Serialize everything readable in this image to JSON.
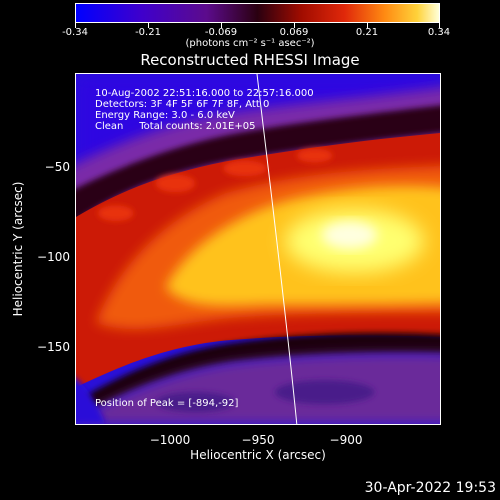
{
  "colorbar": {
    "tick_labels": [
      "-0.34",
      "-0.21",
      "-0.069",
      "0.069",
      "0.21",
      "0.34"
    ],
    "unit_label": "(photons cm⁻² s⁻¹ asec⁻²)",
    "range": [
      -0.34,
      0.34
    ]
  },
  "image": {
    "title": "Reconstructed RHESSI Image",
    "time_range": "10-Aug-2002 22:51:16.000 to 22:57:16.000",
    "detectors": "Detectors: 3F 4F 5F 6F 7F 8F, Att 0",
    "energy_range": "Energy Range: 3.0 - 6.0 keV",
    "algorithm_counts": "Clean     Total counts: 2.01E+05",
    "peak_position": "Position of Peak = [-894,-92]"
  },
  "axes": {
    "xlabel": "Heliocentric X (arcsec)",
    "ylabel": "Heliocentric Y (arcsec)",
    "x_ticks": [
      "−1000",
      "−950",
      "−900"
    ],
    "y_ticks": [
      "−50",
      "−100",
      "−150"
    ],
    "xlim": [
      -1050,
      -880
    ],
    "ylim": [
      -190,
      -20
    ]
  },
  "footer": {
    "date": "30-Apr-2022 19:53"
  },
  "colors": {
    "colormap": [
      "#0000ff",
      "#3f00cc",
      "#5c0b8c",
      "#3a0820",
      "#a00c00",
      "#e0280a",
      "#ff7a0d",
      "#ffc21e",
      "#ffffc0"
    ]
  }
}
